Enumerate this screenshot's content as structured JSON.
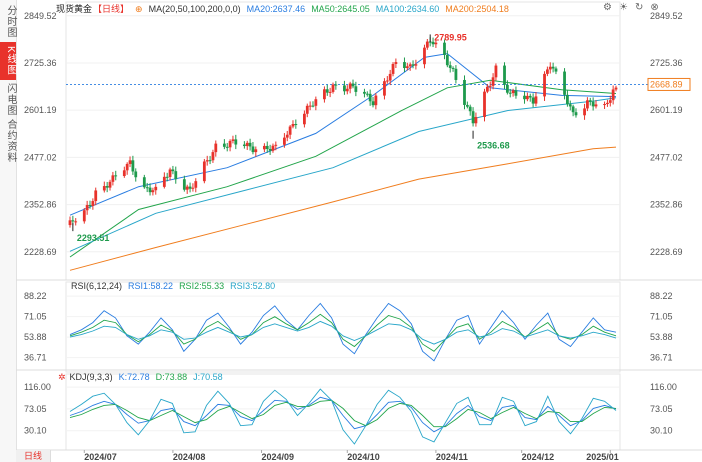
{
  "leftbar": {
    "tabs": [
      {
        "label": "分时图",
        "active": false
      },
      {
        "label": "K线图",
        "active": true
      },
      {
        "label": "闪电图",
        "active": false
      },
      {
        "label": "合约资料",
        "active": false
      }
    ]
  },
  "header": {
    "title": "现货黄金",
    "period_tag": "【日线】",
    "ma_label": "MA(20,50,100,200,0,0)",
    "ma20": "MA20:2637.46",
    "ma50": "MA50:2645.05",
    "ma100": "MA100:2634.60",
    "ma200": "MA200:2504.18",
    "icons": [
      "settings-icon",
      "sun-icon",
      "refresh-icon",
      "close-icon"
    ]
  },
  "colors": {
    "up": "#e8322b",
    "down": "#1e9a4c",
    "ma20": "#2a7de1",
    "ma50": "#22a54b",
    "ma100": "#28a6c9",
    "ma200": "#f07d1e",
    "rsi1": "#2a7de1",
    "rsi2": "#22a54b",
    "rsi3": "#28a6c9",
    "k": "#2a7de1",
    "d": "#22a54b",
    "j": "#28a6c9"
  },
  "chart_data": [
    {
      "type": "candlestick",
      "title": "现货黄金 日线",
      "y_ticks": [
        "2849.52",
        "2725.36",
        "2601.19",
        "2477.02",
        "2352.86",
        "2228.69"
      ],
      "ylim": [
        2165,
        2870
      ],
      "x_ticks": [
        "2024/07",
        "2024/08",
        "2024/09",
        "2024/10",
        "2024/11",
        "2024/12",
        "2025/01"
      ],
      "x_range": [
        "2024-06-26",
        "2025-01-03"
      ],
      "annotations": [
        {
          "text": "2789.95",
          "date": "2024-10-30",
          "value": 2789.95
        },
        {
          "text": "2536.68",
          "date": "2024-11-14",
          "value": 2536.68
        },
        {
          "text": "2293.51",
          "date": "2024-06-27",
          "value": 2293.51
        }
      ],
      "last_price": "2668.89",
      "close_path": [
        [
          "2024-06-26",
          2299
        ],
        [
          "2024-07-01",
          2330
        ],
        [
          "2024-07-05",
          2388
        ],
        [
          "2024-07-11",
          2415
        ],
        [
          "2024-07-17",
          2465
        ],
        [
          "2024-07-22",
          2395
        ],
        [
          "2024-07-26",
          2385
        ],
        [
          "2024-07-31",
          2447
        ],
        [
          "2024-08-07",
          2385
        ],
        [
          "2024-08-16",
          2510
        ],
        [
          "2024-08-23",
          2512
        ],
        [
          "2024-09-06",
          2497
        ],
        [
          "2024-09-13",
          2578
        ],
        [
          "2024-09-20",
          2622
        ],
        [
          "2024-09-26",
          2668
        ],
        [
          "2024-10-03",
          2657
        ],
        [
          "2024-10-10",
          2628
        ],
        [
          "2024-10-18",
          2720
        ],
        [
          "2024-10-23",
          2717
        ],
        [
          "2024-10-30",
          2783
        ],
        [
          "2024-11-04",
          2740
        ],
        [
          "2024-11-07",
          2707
        ],
        [
          "2024-11-14",
          2566
        ],
        [
          "2024-11-22",
          2715
        ],
        [
          "2024-11-27",
          2640
        ],
        [
          "2024-12-05",
          2632
        ],
        [
          "2024-12-11",
          2720
        ],
        [
          "2024-12-19",
          2595
        ],
        [
          "2024-12-24",
          2618
        ],
        [
          "2024-12-30",
          2606
        ],
        [
          "2025-01-02",
          2658
        ]
      ],
      "series": [
        {
          "name": "MA20",
          "points": [
            [
              "2024-06-26",
              2325
            ],
            [
              "2024-07-20",
              2400
            ],
            [
              "2024-08-20",
              2450
            ],
            [
              "2024-09-20",
              2540
            ],
            [
              "2024-10-10",
              2640
            ],
            [
              "2024-10-28",
              2740
            ],
            [
              "2024-11-05",
              2750
            ],
            [
              "2024-11-20",
              2660
            ],
            [
              "2024-12-15",
              2640
            ],
            [
              "2025-01-03",
              2637
            ]
          ]
        },
        {
          "name": "MA50",
          "points": [
            [
              "2024-06-26",
              2215
            ],
            [
              "2024-07-20",
              2340
            ],
            [
              "2024-08-20",
              2400
            ],
            [
              "2024-09-20",
              2480
            ],
            [
              "2024-10-20",
              2600
            ],
            [
              "2024-11-05",
              2660
            ],
            [
              "2024-11-20",
              2680
            ],
            [
              "2024-12-15",
              2655
            ],
            [
              "2025-01-03",
              2645
            ]
          ]
        },
        {
          "name": "MA100",
          "points": [
            [
              "2024-06-26",
              2230
            ],
            [
              "2024-07-26",
              2330
            ],
            [
              "2024-08-26",
              2390
            ],
            [
              "2024-09-26",
              2450
            ],
            [
              "2024-10-26",
              2545
            ],
            [
              "2024-11-26",
              2600
            ],
            [
              "2024-12-26",
              2625
            ],
            [
              "2025-01-03",
              2634
            ]
          ]
        },
        {
          "name": "MA200",
          "points": [
            [
              "2024-06-26",
              2180
            ],
            [
              "2024-07-26",
              2240
            ],
            [
              "2024-08-26",
              2300
            ],
            [
              "2024-09-26",
              2360
            ],
            [
              "2024-10-26",
              2420
            ],
            [
              "2024-11-26",
              2460
            ],
            [
              "2024-12-26",
              2500
            ],
            [
              "2025-01-03",
              2504
            ]
          ]
        }
      ]
    },
    {
      "type": "line",
      "title": "RSI(6,12,24)",
      "y_ticks": [
        "88.22",
        "71.05",
        "53.88",
        "36.71"
      ],
      "ylim": [
        28,
        95
      ],
      "series": [
        {
          "name": "RSI1",
          "value_label": "RSI1:58.22",
          "values": [
            56,
            60,
            66,
            76,
            70,
            55,
            48,
            58,
            70,
            60,
            42,
            52,
            68,
            74,
            62,
            48,
            58,
            72,
            80,
            68,
            60,
            72,
            82,
            70,
            48,
            40,
            56,
            70,
            82,
            76,
            65,
            42,
            34,
            52,
            68,
            72,
            48,
            62,
            76,
            66,
            52,
            64,
            74,
            52,
            46,
            58,
            70,
            60,
            58
          ]
        },
        {
          "name": "RSI2",
          "value_label": "RSI2:55.33",
          "values": [
            55,
            58,
            62,
            68,
            66,
            56,
            50,
            56,
            64,
            59,
            48,
            52,
            62,
            67,
            60,
            52,
            56,
            66,
            71,
            65,
            60,
            66,
            73,
            66,
            52,
            46,
            55,
            64,
            72,
            69,
            62,
            48,
            42,
            52,
            62,
            65,
            52,
            58,
            67,
            62,
            54,
            60,
            66,
            55,
            52,
            56,
            63,
            58,
            55
          ]
        },
        {
          "name": "RSI3",
          "value_label": "RSI3:52.80",
          "values": [
            54,
            56,
            59,
            63,
            62,
            56,
            52,
            55,
            60,
            58,
            52,
            53,
            58,
            62,
            58,
            54,
            56,
            62,
            65,
            62,
            59,
            62,
            67,
            63,
            55,
            51,
            55,
            60,
            65,
            64,
            60,
            52,
            48,
            52,
            58,
            60,
            54,
            56,
            61,
            59,
            54,
            57,
            60,
            55,
            53,
            55,
            58,
            56,
            53
          ]
        }
      ]
    },
    {
      "type": "line",
      "title": "KDJ(9,3,3)",
      "y_ticks": [
        "116.00",
        "73.05",
        "30.10"
      ],
      "ylim": [
        0,
        130
      ],
      "series": [
        {
          "name": "K",
          "value_label": "K:72.78",
          "values": [
            60,
            68,
            80,
            88,
            82,
            62,
            45,
            50,
            70,
            74,
            48,
            40,
            60,
            82,
            80,
            58,
            50,
            70,
            90,
            88,
            72,
            80,
            96,
            90,
            60,
            34,
            40,
            62,
            86,
            88,
            76,
            46,
            28,
            40,
            64,
            80,
            58,
            50,
            76,
            80,
            56,
            52,
            78,
            60,
            40,
            50,
            74,
            80,
            73
          ]
        },
        {
          "name": "D",
          "value_label": "D:73.88",
          "values": [
            56,
            62,
            72,
            80,
            82,
            70,
            56,
            50,
            60,
            70,
            58,
            46,
            52,
            70,
            78,
            66,
            54,
            62,
            80,
            86,
            78,
            78,
            88,
            90,
            74,
            50,
            40,
            52,
            74,
            84,
            80,
            60,
            38,
            38,
            54,
            72,
            66,
            54,
            66,
            76,
            64,
            54,
            68,
            66,
            48,
            48,
            64,
            76,
            74
          ]
        },
        {
          "name": "J",
          "value_label": "J:70.58",
          "values": [
            68,
            82,
            98,
            104,
            82,
            46,
            22,
            50,
            92,
            84,
            26,
            28,
            80,
            108,
            84,
            40,
            42,
            88,
            110,
            92,
            60,
            84,
            112,
            90,
            32,
            4,
            40,
            82,
            110,
            96,
            68,
            18,
            8,
            46,
            84,
            96,
            42,
            42,
            96,
            88,
            40,
            48,
            98,
            48,
            24,
            54,
            94,
            88,
            70
          ]
        }
      ]
    }
  ],
  "bottom": {
    "period_button": "日线"
  }
}
